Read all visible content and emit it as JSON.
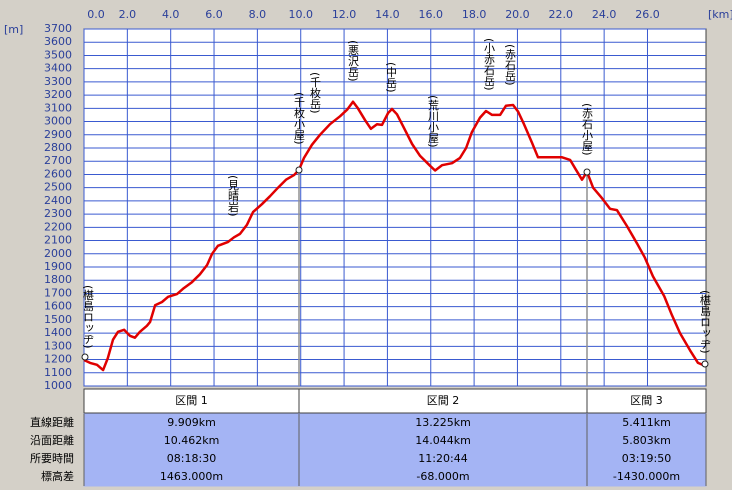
{
  "chart_data": {
    "type": "line",
    "x_unit": "[km]",
    "y_unit": "[m]",
    "x": [
      0,
      0.28,
      0.6,
      0.88,
      1.1,
      1.34,
      1.57,
      1.85,
      2.12,
      2.35,
      2.58,
      2.9,
      3.05,
      3.28,
      3.6,
      3.88,
      4.29,
      4.57,
      4.98,
      5.35,
      5.68,
      5.91,
      6.18,
      6.65,
      6.92,
      7.2,
      7.52,
      7.8,
      8.21,
      8.58,
      8.95,
      9.32,
      9.69,
      9.92,
      10.15,
      10.52,
      10.89,
      11.35,
      11.81,
      12.14,
      12.41,
      12.64,
      12.97,
      13.24,
      13.52,
      13.75,
      14.03,
      14.21,
      14.44,
      14.77,
      15.14,
      15.51,
      15.97,
      16.2,
      16.52,
      16.98,
      17.35,
      17.63,
      17.9,
      18.27,
      18.55,
      18.83,
      19.2,
      19.47,
      19.8,
      20.03,
      20.3,
      20.67,
      20.95,
      21.41,
      21.74,
      22.06,
      22.43,
      22.7,
      22.98,
      23.21,
      23.49,
      23.9,
      24.27,
      24.59,
      25.05,
      25.51,
      25.88,
      26.25,
      26.77,
      27.13,
      27.5,
      27.96,
      28.33,
      28.7
    ],
    "values": [
      1197,
      1175,
      1160,
      1120,
      1210,
      1350,
      1410,
      1425,
      1380,
      1365,
      1410,
      1455,
      1485,
      1610,
      1635,
      1675,
      1695,
      1735,
      1785,
      1845,
      1915,
      2000,
      2060,
      2090,
      2125,
      2150,
      2220,
      2315,
      2375,
      2435,
      2500,
      2560,
      2595,
      2635,
      2725,
      2825,
      2900,
      2980,
      3040,
      3090,
      3150,
      3100,
      3010,
      2945,
      2980,
      2975,
      3065,
      3095,
      3055,
      2950,
      2830,
      2740,
      2665,
      2630,
      2670,
      2685,
      2725,
      2800,
      2920,
      3030,
      3080,
      3050,
      3050,
      3120,
      3125,
      3075,
      2980,
      2840,
      2730,
      2730,
      2730,
      2730,
      2710,
      2635,
      2560,
      2620,
      2500,
      2420,
      2340,
      2330,
      2210,
      2080,
      1970,
      1830,
      1680,
      1535,
      1400,
      1270,
      1175,
      1150
    ],
    "color": "#e00000",
    "xlim": [
      0,
      28.7
    ],
    "ylim": [
      1000,
      3700
    ],
    "xticks": [
      {
        "value": 0,
        "label": "0.0"
      },
      {
        "value": 2,
        "label": "2.0"
      },
      {
        "value": 4,
        "label": "4.0"
      },
      {
        "value": 6,
        "label": "6.0"
      },
      {
        "value": 8,
        "label": "8.0"
      },
      {
        "value": 10,
        "label": "10.0"
      },
      {
        "value": 12,
        "label": "12.0"
      },
      {
        "value": 14,
        "label": "14.0"
      },
      {
        "value": 16,
        "label": "16.0"
      },
      {
        "value": 18,
        "label": "18.0"
      },
      {
        "value": 20,
        "label": "20.0"
      },
      {
        "value": 22,
        "label": "22.0"
      },
      {
        "value": 24,
        "label": "24.0"
      },
      {
        "value": 26,
        "label": "26.0"
      }
    ],
    "yticks": [
      1000,
      1100,
      1200,
      1300,
      1400,
      1500,
      1600,
      1700,
      1800,
      1900,
      2000,
      2100,
      2200,
      2300,
      2400,
      2500,
      2600,
      2700,
      2800,
      2900,
      3000,
      3100,
      3200,
      3300,
      3400,
      3500,
      3600,
      3700
    ],
    "grid": true,
    "annotations": [
      "(椹島ロッヂ)",
      "(見晴岩)",
      "(千枚小屋)",
      "(千枚岳)",
      "(悪沢岳)",
      "(中岳)",
      "(荒川小屋)",
      "(小赤石岳)",
      "(赤石岳)",
      "(赤石小屋)",
      "(椹島ロッヂ)"
    ]
  },
  "table": {
    "columns": [
      "区間 1",
      "区間 2",
      "区間 3"
    ],
    "rows": [
      {
        "label": "直線距離",
        "cells": [
          "9.909km",
          "13.225km",
          "5.411km"
        ]
      },
      {
        "label": "沿面距離",
        "cells": [
          "10.462km",
          "14.044km",
          "5.803km"
        ]
      },
      {
        "label": "所要時間",
        "cells": [
          "08:18:30",
          "11:20:44",
          "03:19:50"
        ]
      },
      {
        "label": "標高差",
        "cells": [
          "1463.000m",
          "-68.000m",
          "-1430.000m"
        ]
      }
    ]
  }
}
